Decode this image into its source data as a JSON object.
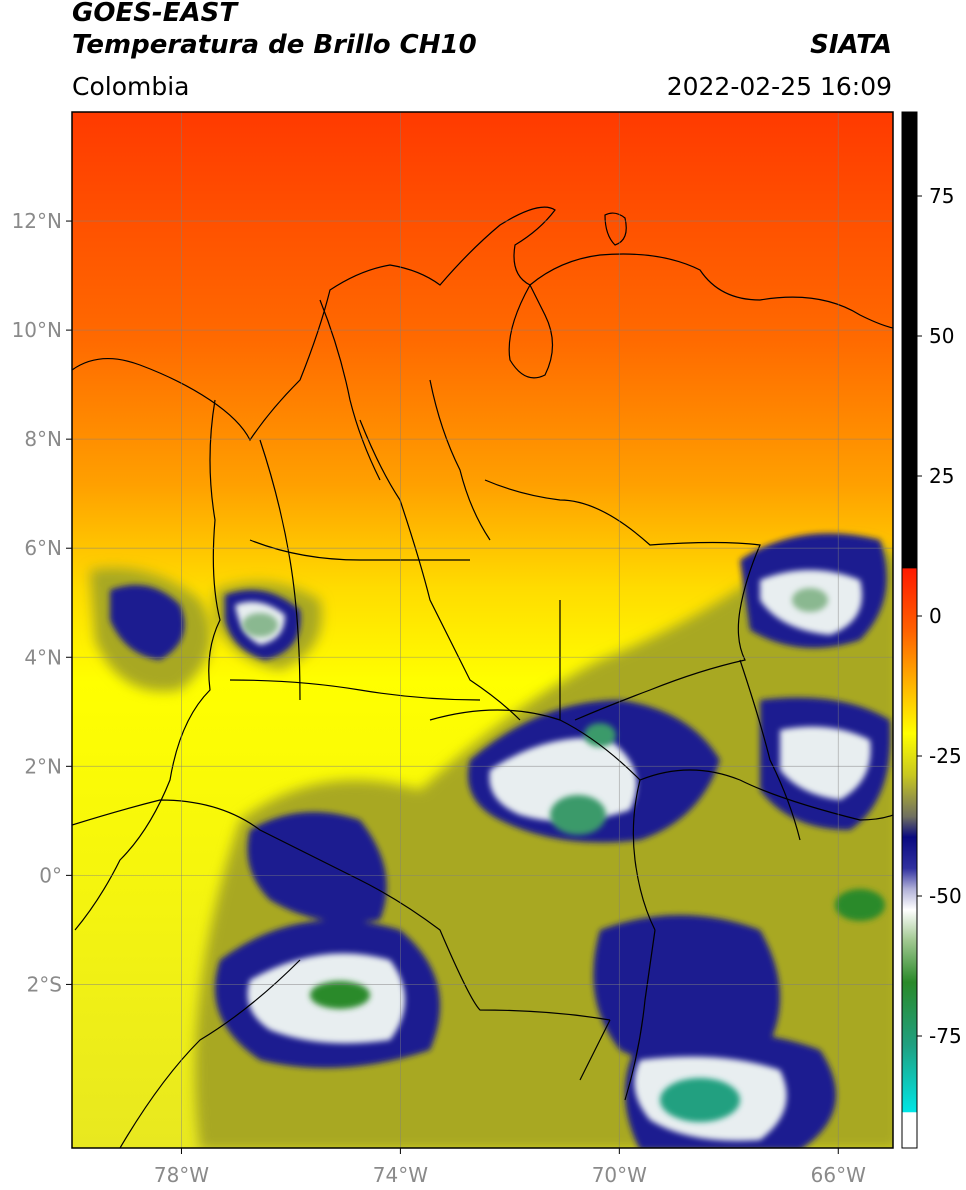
{
  "header": {
    "line1": "GOES-EAST",
    "line2": "Temperatura de Brillo CH10",
    "brand": "SIATA",
    "region": "Colombia",
    "timestamp": "2022-02-25 16:09"
  },
  "map": {
    "lon_range": [
      -80,
      -65
    ],
    "lat_range": [
      -5,
      14
    ],
    "lon_ticks": [
      {
        "value": -78,
        "label": "78°W"
      },
      {
        "value": -74,
        "label": "74°W"
      },
      {
        "value": -70,
        "label": "70°W"
      },
      {
        "value": -66,
        "label": "66°W"
      }
    ],
    "lat_ticks": [
      {
        "value": 12,
        "label": "12°N"
      },
      {
        "value": 10,
        "label": "10°N"
      },
      {
        "value": 8,
        "label": "8°N"
      },
      {
        "value": 6,
        "label": "6°N"
      },
      {
        "value": 4,
        "label": "4°N"
      },
      {
        "value": 2,
        "label": "2°N"
      },
      {
        "value": 0,
        "label": "0°"
      },
      {
        "value": -2,
        "label": "2°S"
      }
    ]
  },
  "colorbar": {
    "range": [
      -95,
      90
    ],
    "ticks": [
      {
        "value": 75,
        "label": "75"
      },
      {
        "value": 50,
        "label": "50"
      },
      {
        "value": 25,
        "label": "25"
      },
      {
        "value": 0,
        "label": "0"
      },
      {
        "value": -25,
        "label": "-25"
      },
      {
        "value": -50,
        "label": "-50"
      },
      {
        "value": -75,
        "label": "-75"
      }
    ],
    "colors": {
      "black": "#000000",
      "red": "#ff1a00",
      "orange": "#ff8000",
      "yellow": "#ffff00",
      "olive": "#9a9a10",
      "navy": "#0a0a80",
      "white": "#ffffff",
      "green": "#2a8a2a",
      "teal": "#20b0a0",
      "cyan": "#00e5e5"
    }
  }
}
